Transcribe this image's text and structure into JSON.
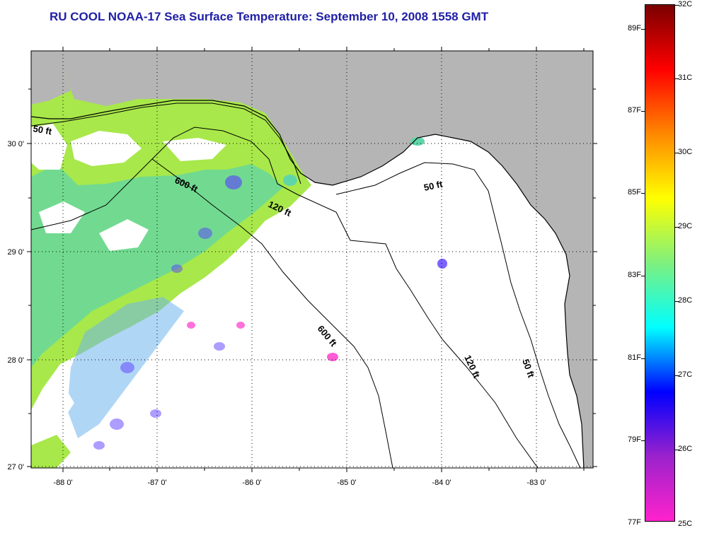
{
  "title": "RU COOL  NOAA-17  Sea Surface Temperature:  September 10, 2008 1558 GMT",
  "map": {
    "lon_labels": [
      "-88 0'",
      "-87 0'",
      "-86 0'",
      "-85 0'",
      "-84 0'",
      "-83 0'"
    ],
    "lat_labels": [
      "30 0'",
      "29 0'",
      "28 0'",
      "27 0'"
    ],
    "contour_labels": [
      "50 ft",
      "600 ft",
      "120 ft",
      "50 ft",
      "600 ft",
      "120 ft",
      "50 ft"
    ],
    "colors": {
      "land": "#b5b5b5",
      "no_data": "#ffffff",
      "warm_water": "#a8e84a",
      "mid_water": "#5fd6a8",
      "cool_water": "#6fb4ee",
      "patch": "#ff33cc"
    }
  },
  "colorbar": {
    "fahrenheit_labels": [
      "89F",
      "87F",
      "85F",
      "83F",
      "81F",
      "79F",
      "77F"
    ],
    "celsius_labels": [
      "32C",
      "31C",
      "30C",
      "29C",
      "28C",
      "27C",
      "26C",
      "25C"
    ],
    "colors_top_to_bottom": [
      "#7a0000",
      "#ff0000",
      "#ff8800",
      "#ffff00",
      "#7ef07e",
      "#00ffff",
      "#0000ff",
      "#9b22cc",
      "#ff22cc"
    ]
  }
}
